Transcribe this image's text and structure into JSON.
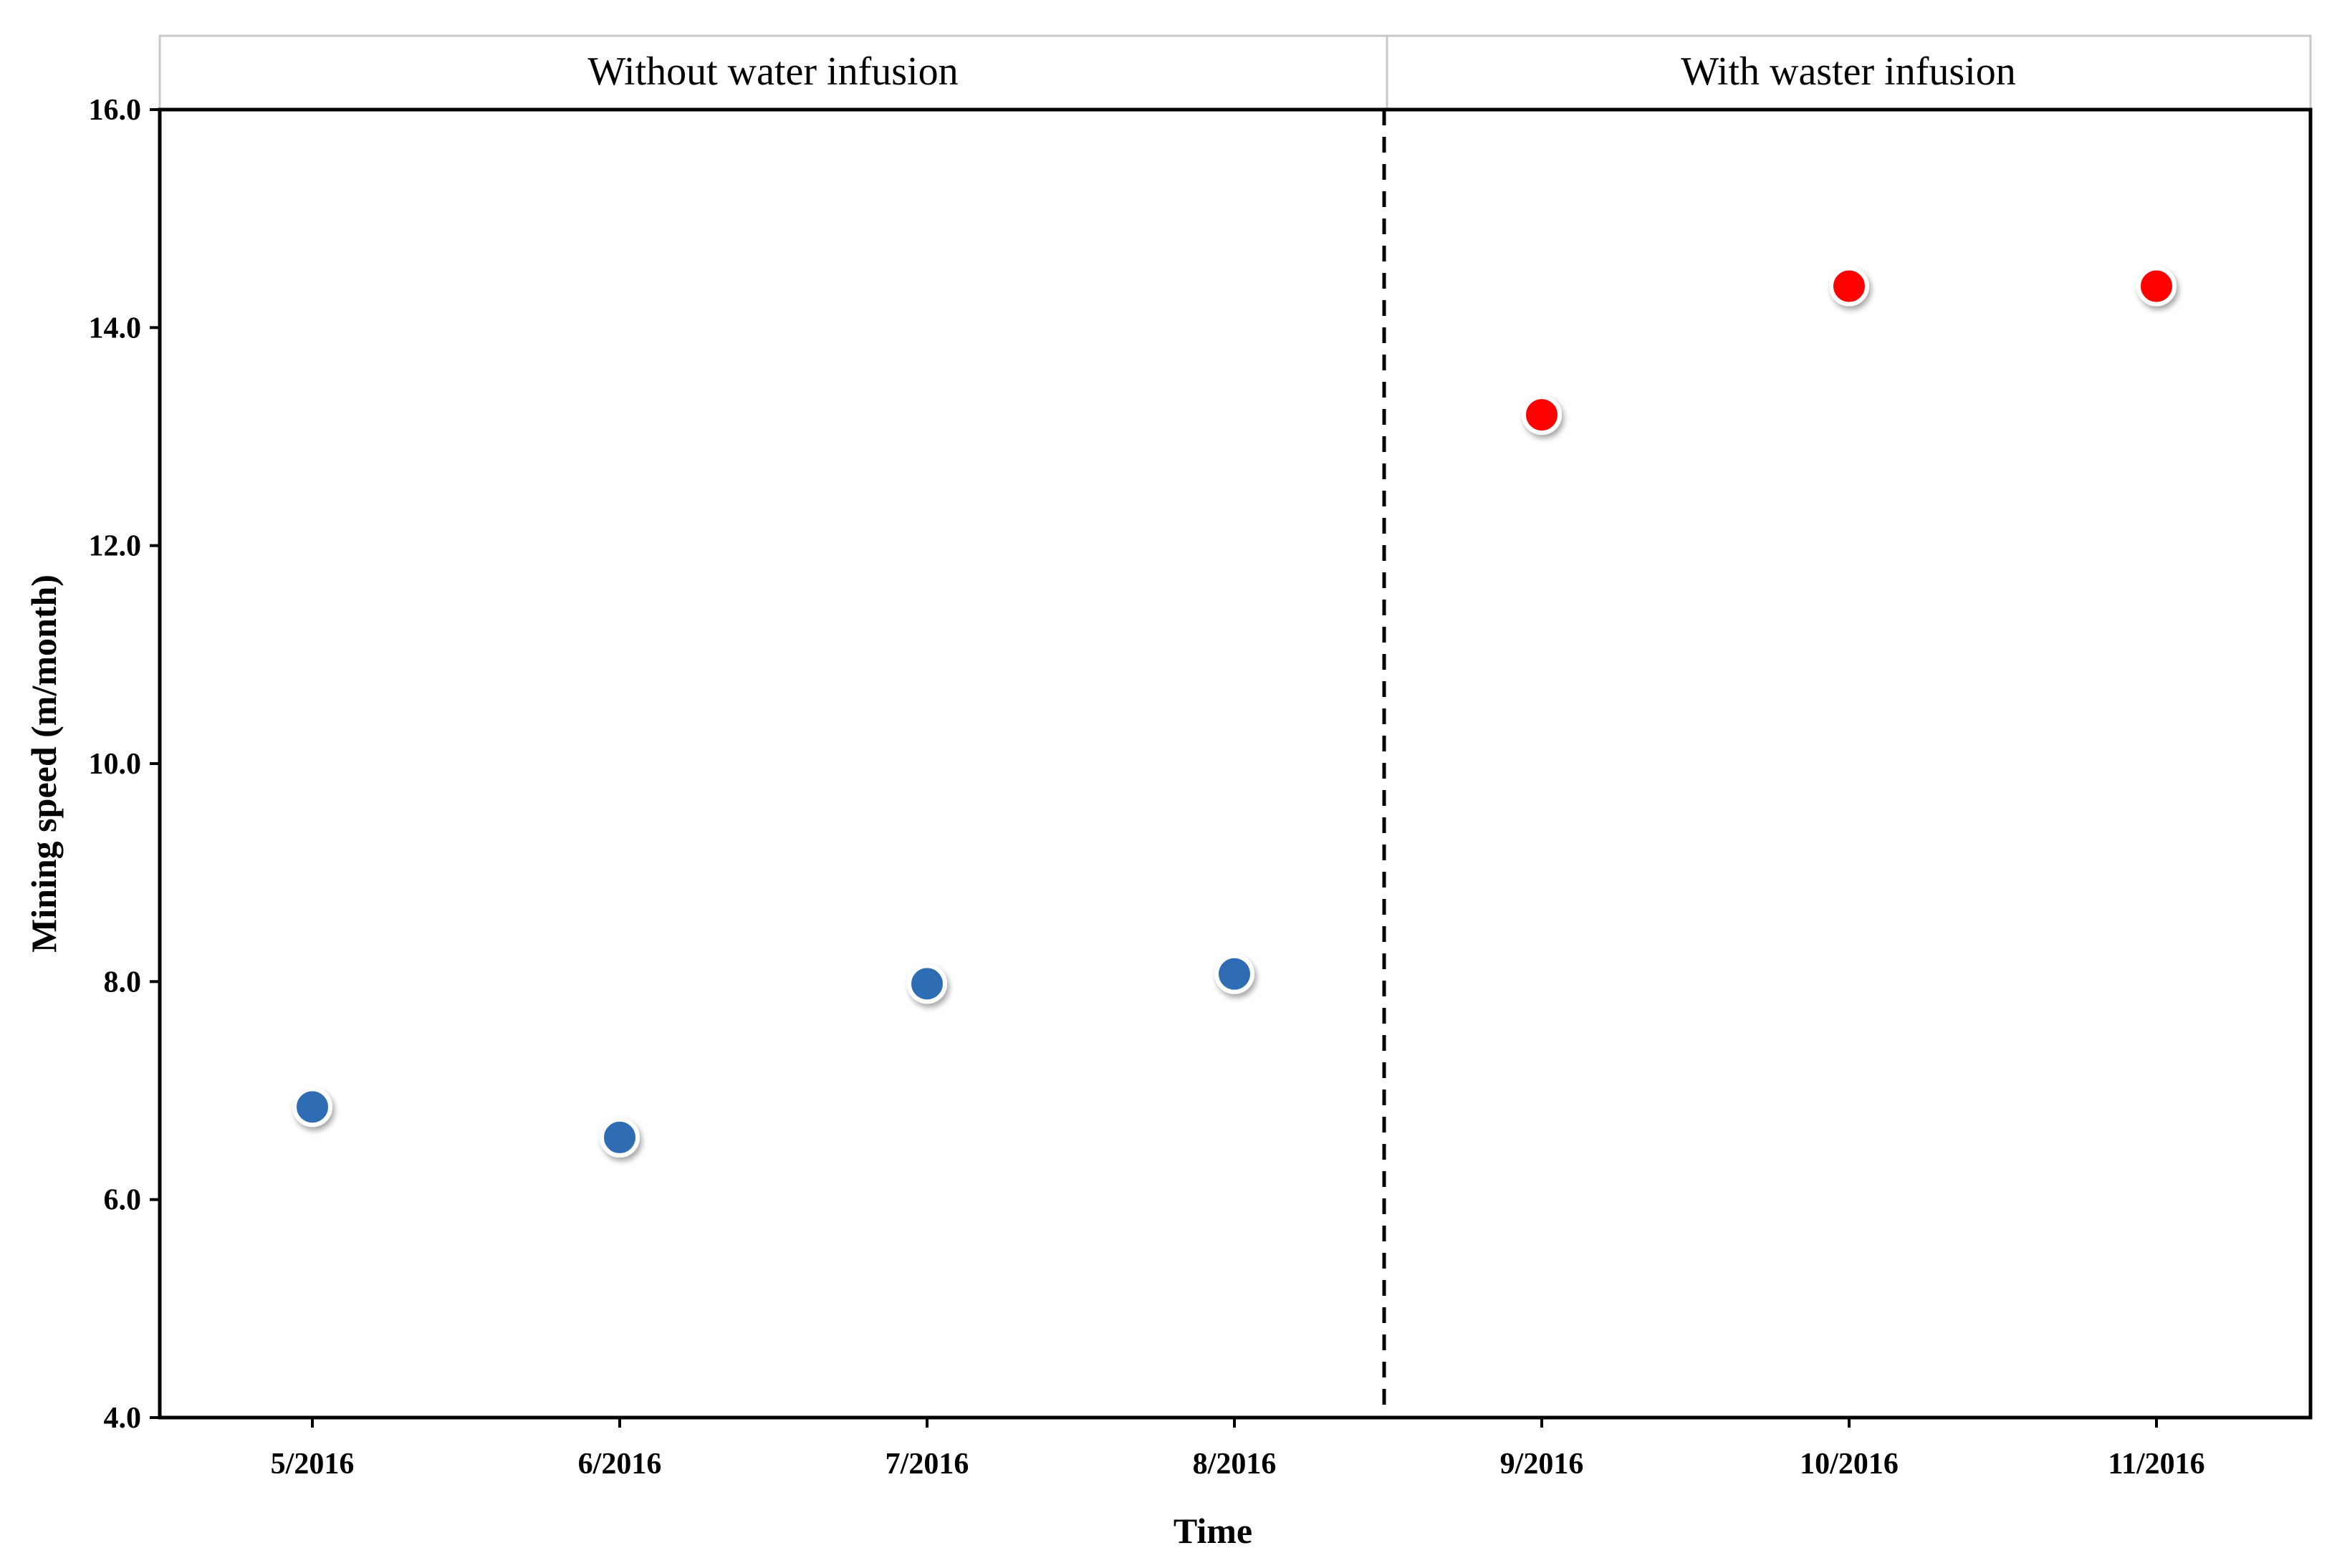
{
  "chart_data": {
    "type": "scatter",
    "xlabel": "Time",
    "ylabel": "Mining speed (m/month)",
    "ylim": [
      4.0,
      16.0
    ],
    "yticks": [
      "4.0",
      "6.0",
      "8.0",
      "10.0",
      "12.0",
      "14.0",
      "16.0"
    ],
    "categories": [
      "5/2016",
      "6/2016",
      "7/2016",
      "8/2016",
      "9/2016",
      "10/2016",
      "11/2016"
    ],
    "panels": [
      {
        "label": "Without water infusion"
      },
      {
        "label": "With waster infusion"
      }
    ],
    "series": [
      {
        "color": "#2e6db4",
        "points": [
          {
            "x": "5/2016",
            "y": 6.85
          },
          {
            "x": "6/2016",
            "y": 6.57
          },
          {
            "x": "7/2016",
            "y": 7.98
          },
          {
            "x": "8/2016",
            "y": 8.07
          }
        ]
      },
      {
        "color": "#ff0000",
        "points": [
          {
            "x": "9/2016",
            "y": 13.2
          },
          {
            "x": "10/2016",
            "y": 14.38
          },
          {
            "x": "11/2016",
            "y": 14.38
          }
        ]
      }
    ],
    "divider": {
      "style": "dashed",
      "between": [
        "8/2016",
        "9/2016"
      ]
    },
    "grid": false,
    "legend": "none"
  }
}
